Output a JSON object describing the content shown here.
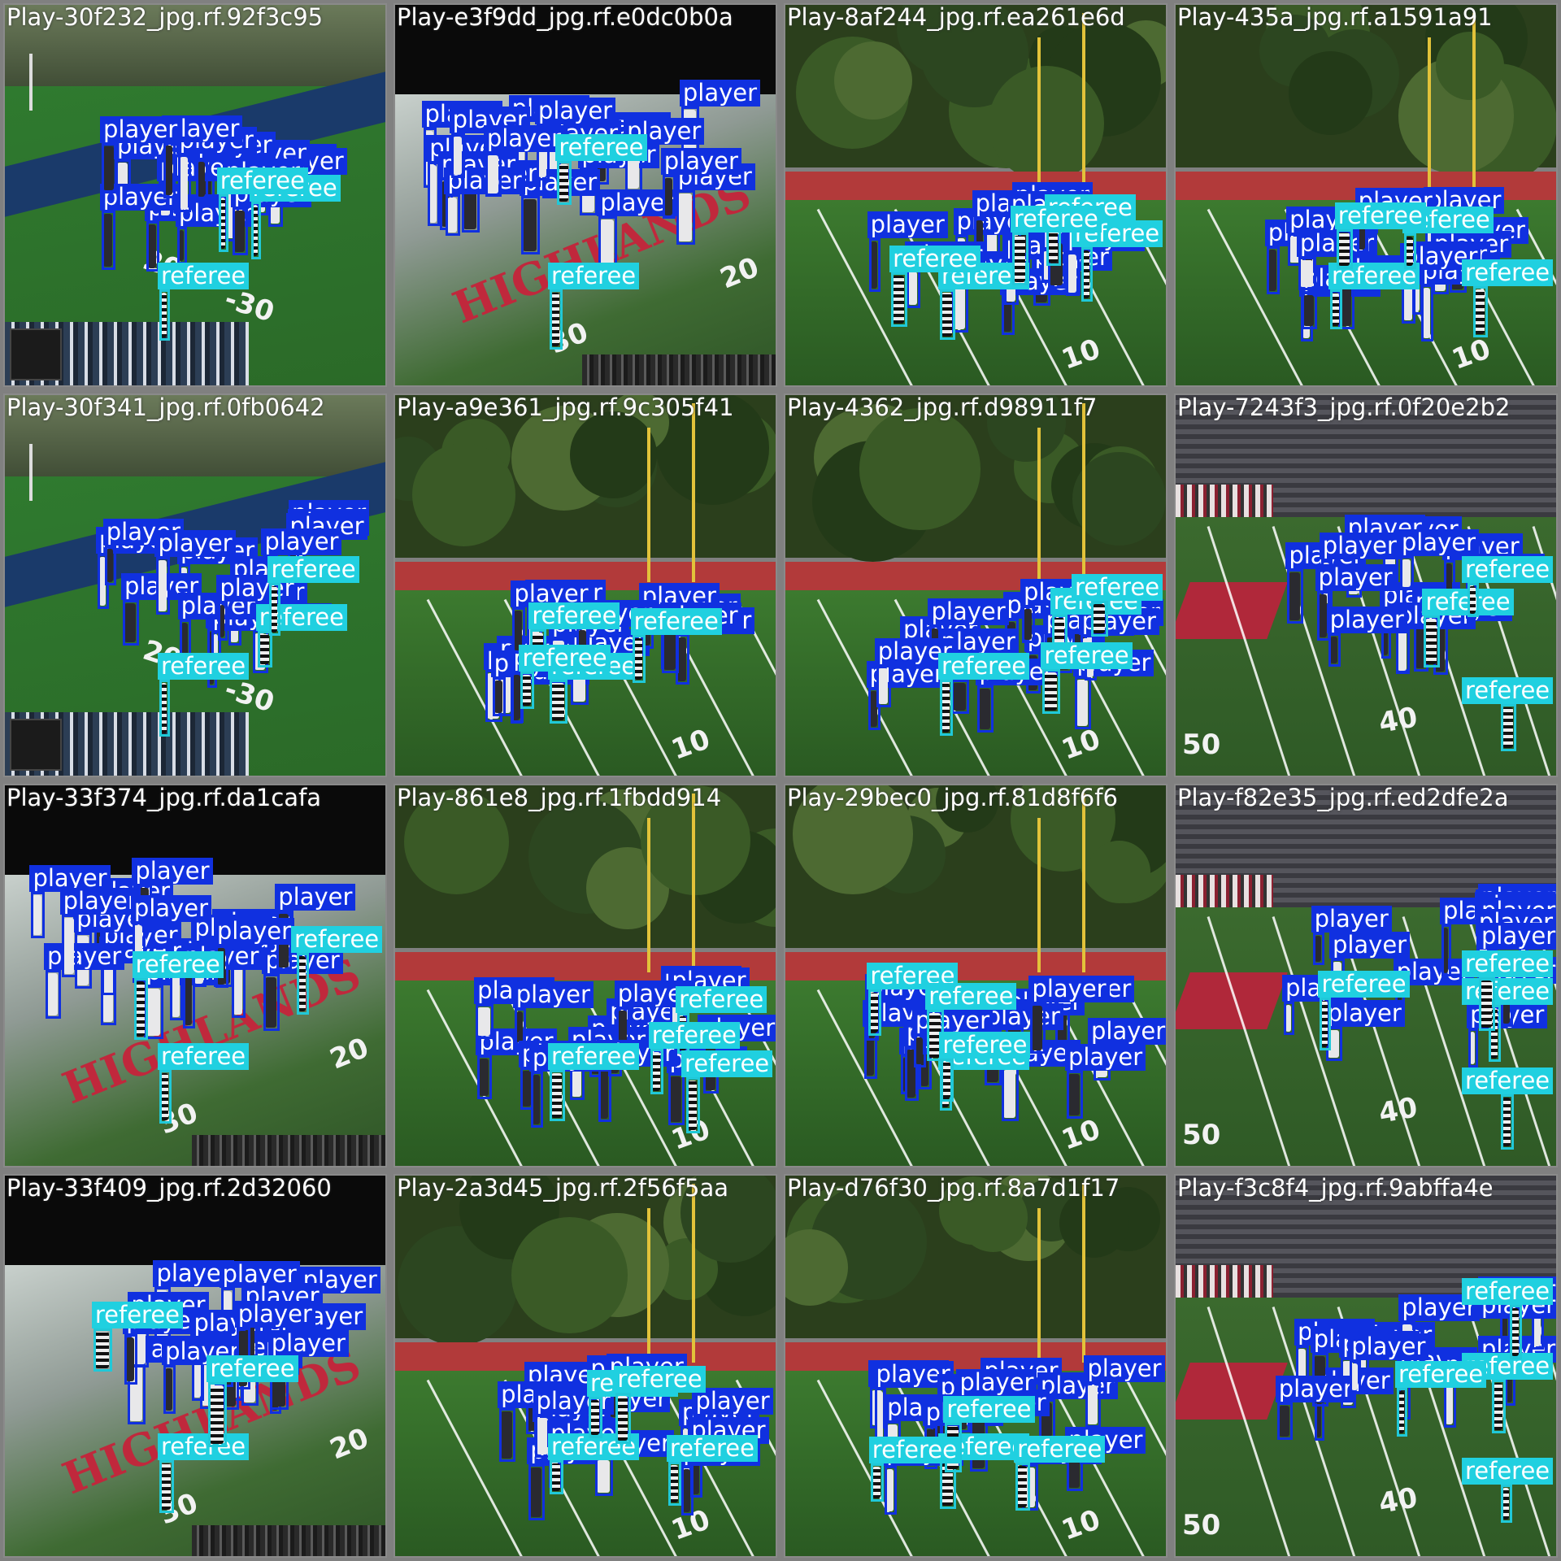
{
  "labels": {
    "player": "player",
    "referee": "referee"
  },
  "colors": {
    "player_box": "#1030e0",
    "referee_box": "#20c8d8",
    "referee_label": "#20d0e0"
  },
  "tiles": [
    {
      "name": "Play-30f232_jpg.rf.92f3c95",
      "scene": "day-mt",
      "dets": {
        "player": 16,
        "referee": 3
      }
    },
    {
      "name": "Play-e3f9dd_jpg.rf.e0dc0b0a",
      "scene": "night",
      "dets": {
        "player": 18,
        "referee": 2
      }
    },
    {
      "name": "Play-8af244_jpg.rf.ea261e6d",
      "scene": "day-trees",
      "dets": {
        "player": 14,
        "referee": 5
      }
    },
    {
      "name": "Play-435a_jpg.rf.a1591a91",
      "scene": "day-trees",
      "dets": {
        "player": 14,
        "referee": 4
      }
    },
    {
      "name": "Play-30f341_jpg.rf.0fb0642",
      "scene": "day-mt",
      "dets": {
        "player": 16,
        "referee": 3
      }
    },
    {
      "name": "Play-a9e361_jpg.rf.9c305f41",
      "scene": "day-trees",
      "dets": {
        "player": 14,
        "referee": 4
      }
    },
    {
      "name": "Play-4362_jpg.rf.d98911f7",
      "scene": "day-trees",
      "dets": {
        "player": 16,
        "referee": 4
      }
    },
    {
      "name": "Play-7243f3_jpg.rf.0f20e2b2",
      "scene": "stadium-h",
      "dets": {
        "player": 14,
        "referee": 3
      }
    },
    {
      "name": "Play-33f374_jpg.rf.da1cafa",
      "scene": "night",
      "dets": {
        "player": 18,
        "referee": 3
      }
    },
    {
      "name": "Play-861e8_jpg.rf.1fbdd914",
      "scene": "day-trees",
      "dets": {
        "player": 14,
        "referee": 4
      }
    },
    {
      "name": "Play-29bec0_jpg.rf.81d8f6f6",
      "scene": "day-trees",
      "dets": {
        "player": 14,
        "referee": 4
      }
    },
    {
      "name": "Play-f82e35_jpg.rf.ed2dfe2a",
      "scene": "stadium-h",
      "dets": {
        "player": 14,
        "referee": 4
      }
    },
    {
      "name": "Play-33f409_jpg.rf.2d32060",
      "scene": "night",
      "dets": {
        "player": 18,
        "referee": 3
      }
    },
    {
      "name": "Play-2a3d45_jpg.rf.2f56f5aa",
      "scene": "day-trees",
      "dets": {
        "player": 14,
        "referee": 4
      }
    },
    {
      "name": "Play-d76f30_jpg.rf.8a7d1f17",
      "scene": "day-trees",
      "dets": {
        "player": 14,
        "referee": 4
      }
    },
    {
      "name": "Play-f3c8f4_jpg.rf.9abffa4e",
      "scene": "stadium-h",
      "dets": {
        "player": 14,
        "referee": 4
      }
    }
  ]
}
